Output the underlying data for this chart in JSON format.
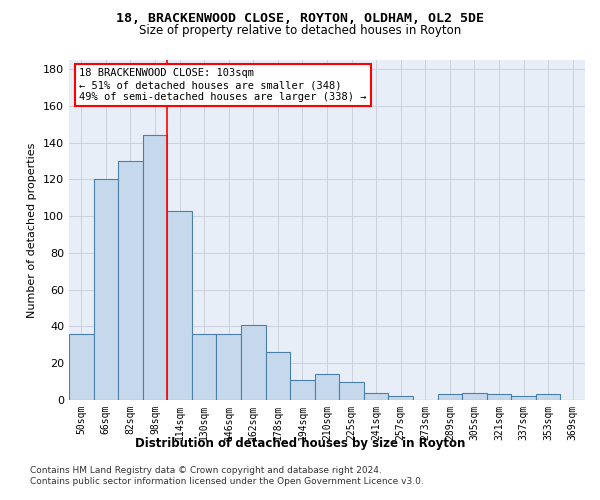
{
  "title1": "18, BRACKENWOOD CLOSE, ROYTON, OLDHAM, OL2 5DE",
  "title2": "Size of property relative to detached houses in Royton",
  "xlabel": "Distribution of detached houses by size in Royton",
  "ylabel": "Number of detached properties",
  "categories": [
    "50sqm",
    "66sqm",
    "82sqm",
    "98sqm",
    "114sqm",
    "130sqm",
    "146sqm",
    "162sqm",
    "178sqm",
    "194sqm",
    "210sqm",
    "225sqm",
    "241sqm",
    "257sqm",
    "273sqm",
    "289sqm",
    "305sqm",
    "321sqm",
    "337sqm",
    "353sqm",
    "369sqm"
  ],
  "values": [
    36,
    120,
    130,
    144,
    103,
    36,
    36,
    41,
    26,
    11,
    14,
    10,
    4,
    2,
    0,
    3,
    4,
    3,
    2,
    3,
    0
  ],
  "bar_color": "#c6d9ec",
  "bar_edge_color": "#4a7fa8",
  "vline_pos": 3.5,
  "vline_color": "red",
  "annotation_text": "18 BRACKENWOOD CLOSE: 103sqm\n← 51% of detached houses are smaller (348)\n49% of semi-detached houses are larger (338) →",
  "ylim": [
    0,
    185
  ],
  "yticks": [
    0,
    20,
    40,
    60,
    80,
    100,
    120,
    140,
    160,
    180
  ],
  "background_color": "#e8eef8",
  "grid_color": "#c8ccd8",
  "footer_line1": "Contains HM Land Registry data © Crown copyright and database right 2024.",
  "footer_line2": "Contains public sector information licensed under the Open Government Licence v3.0."
}
